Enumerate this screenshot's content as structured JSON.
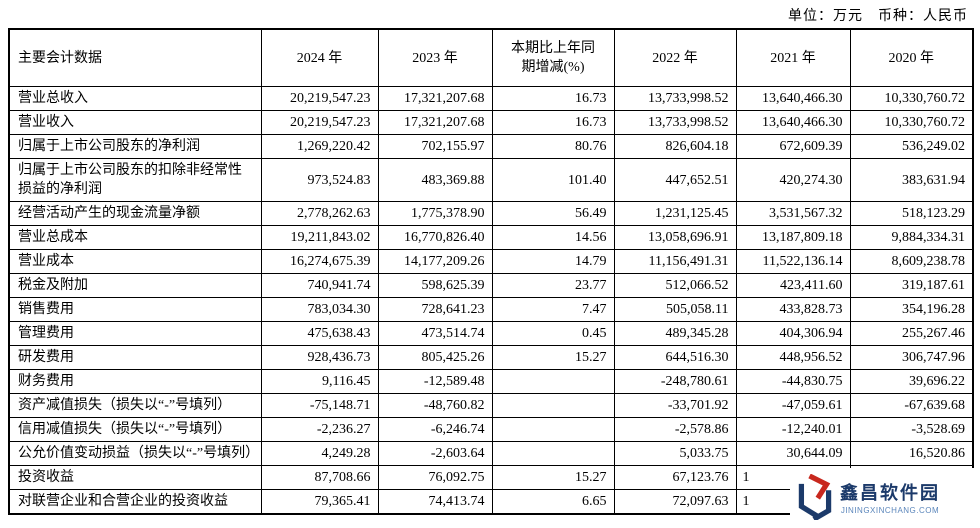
{
  "note": "单位：万元　币种：人民币",
  "watermark": {
    "title": "鑫昌软件园",
    "subtitle": "JININGXINCHANG.COM",
    "colors": {
      "navy": "#1c3a6a",
      "red": "#c8281e",
      "light_blue": "#5b86bb"
    }
  },
  "table": {
    "columns": [
      {
        "label": "主要会计数据"
      },
      {
        "label": "2024 年"
      },
      {
        "label": "2023 年"
      },
      {
        "label": "本期比上年同期增减(%)"
      },
      {
        "label": "2022 年"
      },
      {
        "label": "2021 年"
      },
      {
        "label": "2020 年"
      }
    ],
    "rows": [
      [
        "营业总收入",
        "20,219,547.23",
        "17,321,207.68",
        "16.73",
        "13,733,998.52",
        "13,640,466.30",
        "10,330,760.72"
      ],
      [
        "营业收入",
        "20,219,547.23",
        "17,321,207.68",
        "16.73",
        "13,733,998.52",
        "13,640,466.30",
        "10,330,760.72"
      ],
      [
        "归属于上市公司股东的净利润",
        "1,269,220.42",
        "702,155.97",
        "80.76",
        "826,604.18",
        "672,609.39",
        "536,249.02"
      ],
      [
        "归属于上市公司股东的扣除非经常性损益的净利润",
        "973,524.83",
        "483,369.88",
        "101.40",
        "447,652.51",
        "420,274.30",
        "383,631.94"
      ],
      [
        "经营活动产生的现金流量净额",
        "2,778,262.63",
        "1,775,378.90",
        "56.49",
        "1,231,125.45",
        "3,531,567.32",
        "518,123.29"
      ],
      [
        "营业总成本",
        "19,211,843.02",
        "16,770,826.40",
        "14.56",
        "13,058,696.91",
        "13,187,809.18",
        "9,884,334.31"
      ],
      [
        "营业成本",
        "16,274,675.39",
        "14,177,209.26",
        "14.79",
        "11,156,491.31",
        "11,522,136.14",
        "8,609,238.78"
      ],
      [
        "税金及附加",
        "740,941.74",
        "598,625.39",
        "23.77",
        "512,066.52",
        "423,411.60",
        "319,187.61"
      ],
      [
        "销售费用",
        "783,034.30",
        "728,641.23",
        "7.47",
        "505,058.11",
        "433,828.73",
        "354,196.28"
      ],
      [
        "管理费用",
        "475,638.43",
        "473,514.74",
        "0.45",
        "489,345.28",
        "404,306.94",
        "255,267.46"
      ],
      [
        "研发费用",
        "928,436.73",
        "805,425.26",
        "15.27",
        "644,516.30",
        "448,956.52",
        "306,747.96"
      ],
      [
        "财务费用",
        "9,116.45",
        "-12,589.48",
        "",
        "-248,780.61",
        "-44,830.75",
        "39,696.22"
      ],
      [
        "资产减值损失（损失以“-”号填列）",
        "-75,148.71",
        "-48,760.82",
        "",
        "-33,701.92",
        "-47,059.61",
        "-67,639.68"
      ],
      [
        "信用减值损失（损失以“-”号填列）",
        "-2,236.27",
        "-6,246.74",
        "",
        "-2,578.86",
        "-12,240.01",
        "-3,528.69"
      ],
      [
        "公允价值变动损益（损失以“-”号填列）",
        "4,249.28",
        "-2,603.64",
        "",
        "5,033.75",
        "30,644.09",
        "16,520.86"
      ],
      [
        "投资收益",
        "87,708.66",
        "76,092.75",
        "15.27",
        "67,123.76",
        {
          "v": "1",
          "align": "left"
        },
        ""
      ],
      [
        "对联营企业和合营企业的投资收益",
        "79,365.41",
        "74,413.74",
        "6.65",
        "72,097.63",
        {
          "v": "1",
          "align": "left"
        },
        ""
      ]
    ]
  }
}
